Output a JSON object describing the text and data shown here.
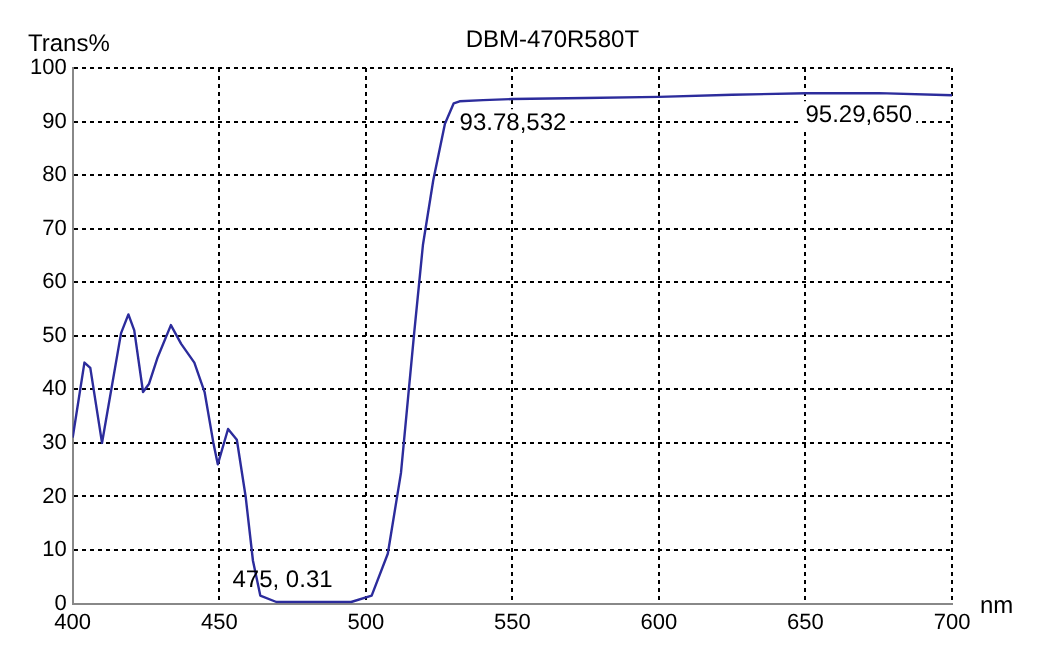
{
  "chart_data": {
    "type": "line",
    "title": "DBM-470R580T",
    "xlabel": "nm",
    "ylabel": "Trans%",
    "series": [
      {
        "color": "#2c2c9c",
        "x": [
          400,
          404,
          406,
          410,
          416.5,
          419,
          421,
          424,
          426,
          429,
          433.5,
          437,
          441.5,
          445,
          448,
          449.5,
          453,
          456,
          459,
          461.5,
          464,
          469.5,
          475,
          495,
          502,
          507.5,
          512,
          516.5,
          519.5,
          523,
          527,
          530,
          532,
          540,
          550,
          575,
          600,
          625,
          650,
          675,
          700
        ],
        "values": [
          31,
          45,
          44,
          30,
          50.5,
          54,
          51,
          39.5,
          41,
          46,
          52,
          48.5,
          45,
          39.5,
          30,
          26,
          32.6,
          30.6,
          20,
          8,
          1.5,
          0.3,
          0.31,
          0.3,
          1.5,
          9.3,
          24.4,
          50.5,
          67,
          79,
          89.6,
          93.4,
          93.78,
          94,
          94.2,
          94.4,
          94.6,
          95,
          95.29,
          95.3,
          94.9
        ]
      }
    ],
    "xlim": [
      400,
      700
    ],
    "xticks": [
      400,
      450,
      500,
      550,
      600,
      650,
      700
    ],
    "ylim": [
      0,
      100
    ],
    "yticks": [
      0,
      10,
      20,
      30,
      40,
      50,
      60,
      70,
      80,
      90,
      100
    ],
    "grid": true,
    "legend": false,
    "marker": "none",
    "line_style": "solid",
    "annotations": [
      {
        "text": "475, 0.31",
        "x": 475,
        "y": 0.31
      },
      {
        "text": "93.78,532",
        "x": 532,
        "y": 93.78
      },
      {
        "text": "95.29,650",
        "x": 650,
        "y": 95.29
      }
    ]
  }
}
